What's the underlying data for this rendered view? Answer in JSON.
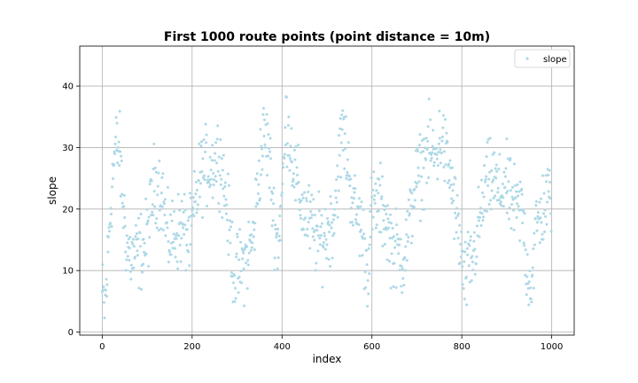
{
  "chart_data": {
    "type": "scatter",
    "title": "First 1000 route points (point distance = 10m)",
    "xlabel": "index",
    "ylabel": "slope",
    "xlim": [
      -50,
      1050
    ],
    "ylim": [
      -0.5,
      46.5
    ],
    "xticks": [
      0,
      200,
      400,
      600,
      800,
      1000
    ],
    "yticks": [
      0,
      10,
      20,
      30,
      40
    ],
    "grid": true,
    "legend_position": "upper right",
    "series": [
      {
        "name": "slope",
        "color": "#add8e6",
        "marker": "point",
        "anchors": [
          [
            0,
            6
          ],
          [
            5,
            4
          ],
          [
            10,
            8
          ],
          [
            15,
            16
          ],
          [
            20,
            22
          ],
          [
            25,
            27
          ],
          [
            30,
            30
          ],
          [
            38,
            30
          ],
          [
            45,
            22
          ],
          [
            55,
            14
          ],
          [
            65,
            12
          ],
          [
            80,
            13
          ],
          [
            95,
            14
          ],
          [
            105,
            18
          ],
          [
            115,
            24
          ],
          [
            125,
            24
          ],
          [
            135,
            22
          ],
          [
            145,
            15
          ],
          [
            160,
            16
          ],
          [
            180,
            17
          ],
          [
            195,
            15
          ],
          [
            210,
            22
          ],
          [
            220,
            26
          ],
          [
            235,
            27
          ],
          [
            245,
            27
          ],
          [
            260,
            29
          ],
          [
            275,
            22
          ],
          [
            285,
            15
          ],
          [
            295,
            9
          ],
          [
            305,
            10
          ],
          [
            320,
            12
          ],
          [
            335,
            15
          ],
          [
            350,
            27
          ],
          [
            360,
            32
          ],
          [
            370,
            30
          ],
          [
            380,
            20
          ],
          [
            390,
            14
          ],
          [
            400,
            22
          ],
          [
            410,
            35
          ],
          [
            420,
            30
          ],
          [
            430,
            25
          ],
          [
            445,
            20
          ],
          [
            460,
            18
          ],
          [
            480,
            15
          ],
          [
            500,
            16
          ],
          [
            515,
            19
          ],
          [
            525,
            26
          ],
          [
            535,
            33
          ],
          [
            545,
            28
          ],
          [
            560,
            20
          ],
          [
            575,
            18
          ],
          [
            590,
            10
          ],
          [
            600,
            20
          ],
          [
            615,
            21
          ],
          [
            630,
            19
          ],
          [
            640,
            15
          ],
          [
            655,
            13
          ],
          [
            670,
            12
          ],
          [
            685,
            18
          ],
          [
            695,
            24
          ],
          [
            710,
            26
          ],
          [
            725,
            30
          ],
          [
            740,
            28
          ],
          [
            755,
            32
          ],
          [
            765,
            28
          ],
          [
            775,
            25
          ],
          [
            785,
            20
          ],
          [
            795,
            15
          ],
          [
            805,
            8
          ],
          [
            815,
            10
          ],
          [
            825,
            12
          ],
          [
            835,
            16
          ],
          [
            845,
            20
          ],
          [
            855,
            24
          ],
          [
            870,
            25
          ],
          [
            885,
            22
          ],
          [
            895,
            25
          ],
          [
            905,
            22
          ],
          [
            920,
            20
          ],
          [
            935,
            20
          ],
          [
            945,
            10
          ],
          [
            955,
            8
          ],
          [
            965,
            17
          ],
          [
            980,
            20
          ],
          [
            995,
            22
          ],
          [
            999,
            22
          ]
        ],
        "spread": 4.5,
        "count": 1000
      }
    ]
  }
}
